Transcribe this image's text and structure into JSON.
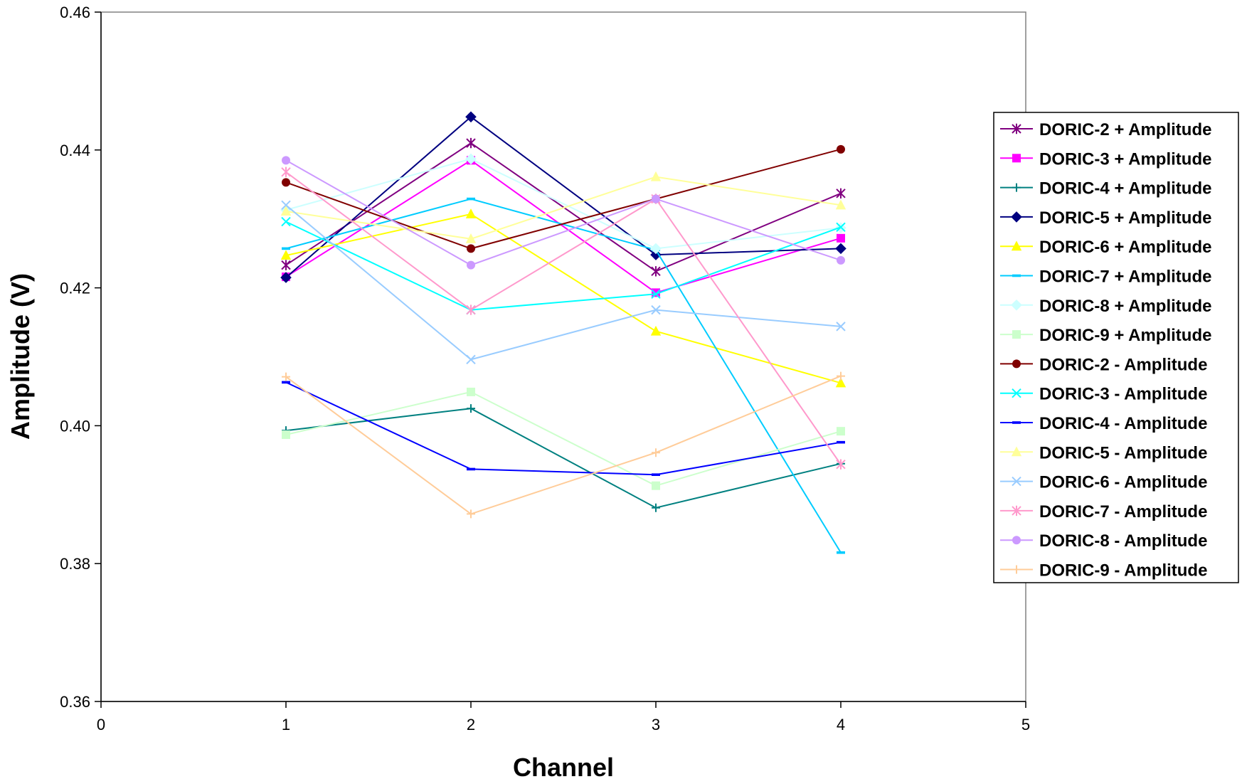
{
  "chart_data": {
    "type": "line",
    "xlabel": "Channel",
    "ylabel": "Amplitude (V)",
    "xlim": [
      0,
      5
    ],
    "ylim": [
      0.36,
      0.46
    ],
    "x_ticks": [
      "0",
      "1",
      "2",
      "3",
      "4",
      "5"
    ],
    "y_ticks": [
      "0.36",
      "0.38",
      "0.40",
      "0.42",
      "0.44",
      "0.46"
    ],
    "grid": false,
    "legend_position": "right",
    "x": [
      1,
      2,
      3,
      4
    ],
    "series": [
      {
        "name": "DORIC-2 + Amplitude",
        "color": "#800080",
        "marker": "asterisk",
        "values": [
          0.4233,
          0.441,
          0.4224,
          0.4337
        ]
      },
      {
        "name": "DORIC-3 + Amplitude",
        "color": "#ff00ff",
        "marker": "square",
        "values": [
          0.4216,
          0.4385,
          0.4193,
          0.4272
        ]
      },
      {
        "name": "DORIC-4 + Amplitude",
        "color": "#008080",
        "marker": "plus",
        "values": [
          0.3993,
          0.4025,
          0.3881,
          0.3945
        ]
      },
      {
        "name": "DORIC-5 + Amplitude",
        "color": "#000080",
        "marker": "diamond",
        "values": [
          0.4215,
          0.4448,
          0.4248,
          0.4257
        ]
      },
      {
        "name": "DORIC-6 + Amplitude",
        "color": "#ffff00",
        "marker": "triangle",
        "values": [
          0.4247,
          0.4307,
          0.4137,
          0.4062
        ]
      },
      {
        "name": "DORIC-7 + Amplitude",
        "color": "#00ccff",
        "marker": "dash",
        "values": [
          0.4257,
          0.4329,
          0.4255,
          0.3816
        ]
      },
      {
        "name": "DORIC-8 + Amplitude",
        "color": "#ccffff",
        "marker": "diamond",
        "values": [
          0.4313,
          0.4387,
          0.4257,
          0.4287
        ]
      },
      {
        "name": "DORIC-9 + Amplitude",
        "color": "#ccffcc",
        "marker": "square",
        "values": [
          0.3987,
          0.4049,
          0.3913,
          0.3992
        ]
      },
      {
        "name": "DORIC-2 - Amplitude",
        "color": "#800000",
        "marker": "circle",
        "values": [
          0.4353,
          0.4257,
          0.4329,
          0.4401
        ]
      },
      {
        "name": "DORIC-3 - Amplitude",
        "color": "#00ffff",
        "marker": "x",
        "values": [
          0.4296,
          0.4168,
          0.4191,
          0.4288
        ]
      },
      {
        "name": "DORIC-4 - Amplitude",
        "color": "#0000ff",
        "marker": "dash",
        "values": [
          0.4063,
          0.3937,
          0.3929,
          0.3976
        ]
      },
      {
        "name": "DORIC-5 - Amplitude",
        "color": "#ffff99",
        "marker": "triangle",
        "values": [
          0.4311,
          0.4271,
          0.4361,
          0.432
        ]
      },
      {
        "name": "DORIC-6 - Amplitude",
        "color": "#99ccff",
        "marker": "x",
        "values": [
          0.432,
          0.4096,
          0.4168,
          0.4144
        ]
      },
      {
        "name": "DORIC-7 - Amplitude",
        "color": "#ff99cc",
        "marker": "asterisk",
        "values": [
          0.4368,
          0.4168,
          0.4329,
          0.3944
        ]
      },
      {
        "name": "DORIC-8 - Amplitude",
        "color": "#cc99ff",
        "marker": "circle",
        "values": [
          0.4385,
          0.4233,
          0.4329,
          0.424
        ]
      },
      {
        "name": "DORIC-9 - Amplitude",
        "color": "#ffcc99",
        "marker": "plus",
        "values": [
          0.4071,
          0.3872,
          0.3961,
          0.4072
        ]
      }
    ]
  }
}
